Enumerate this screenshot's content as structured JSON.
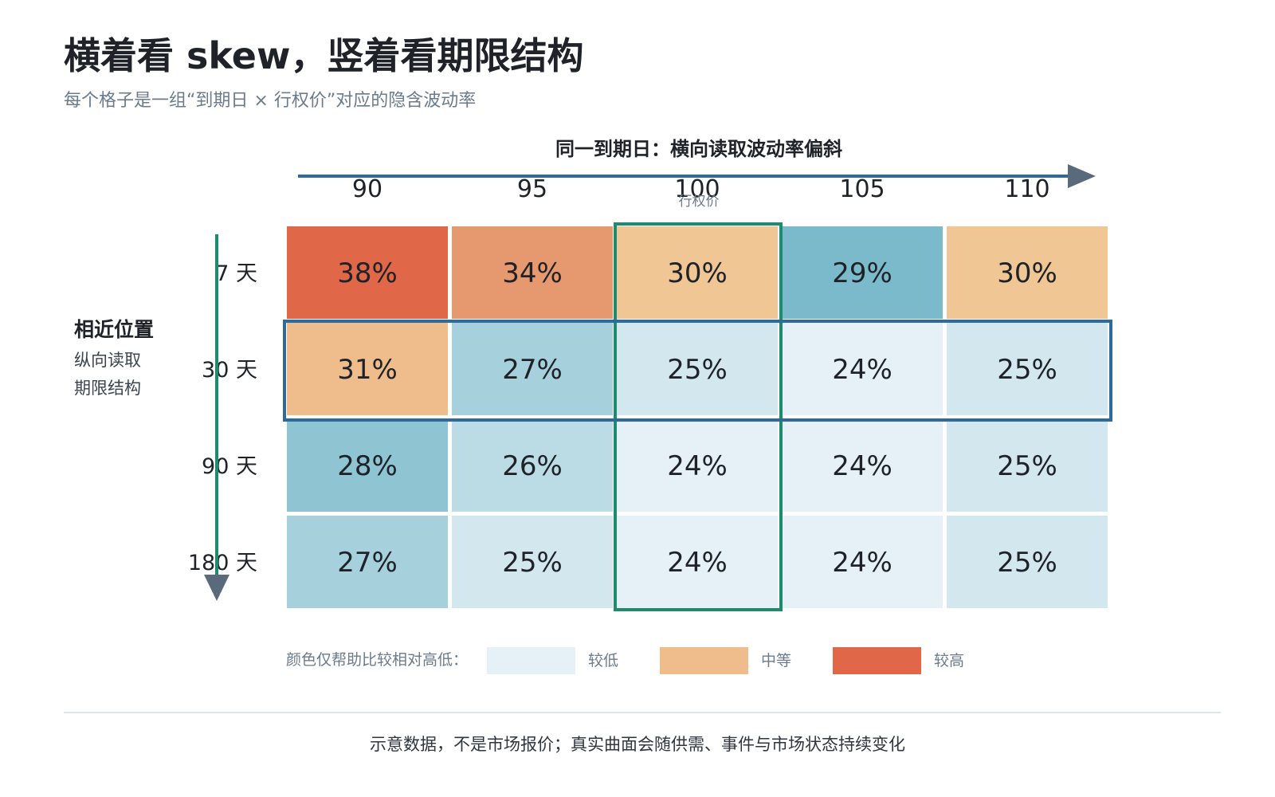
{
  "header": {
    "title": "横着看 skew，竖着看期限结构",
    "subtitle": "每个格子是一组“到期日 × 行权价”对应的隐含波动率"
  },
  "annotations": {
    "top_arrow_label": "同一到期日：横向读取波动率偏斜",
    "left_label_title": "相近位置",
    "left_label_line1": "纵向读取",
    "left_label_line2": "期限结构"
  },
  "legend": {
    "intro": "颜色仅帮助比较相对高低：",
    "items": [
      {
        "label": "较低",
        "color": "#e6f1f7"
      },
      {
        "label": "中等",
        "color": "#efbd8c"
      },
      {
        "label": "较高",
        "color": "#e06748"
      }
    ]
  },
  "footnote": "示意数据，不是市场报价；真实曲面会随供需、事件与市场状态持续变化",
  "colors": {
    "low": "#e6f1f7",
    "mid_teal": "#8fc5d3",
    "mid_orange": "#efbd8c",
    "high": "#e06748",
    "row_highlight": "#2e6a9e",
    "col_highlight": "#1e8a6e",
    "arrow": "#5a6a7d",
    "top_arrow_line": "#2e6a9e"
  },
  "chart_data": {
    "type": "heatmap",
    "xlabel": "行权价",
    "ylabel": "",
    "x": [
      "90",
      "95",
      "100",
      "105",
      "110"
    ],
    "y": [
      "7 天",
      "30 天",
      "90 天",
      "180 天"
    ],
    "values": [
      [
        38,
        34,
        30,
        29,
        30
      ],
      [
        31,
        27,
        25,
        24,
        25
      ],
      [
        28,
        26,
        24,
        24,
        25
      ],
      [
        27,
        25,
        24,
        24,
        25
      ]
    ],
    "cell_colors": [
      [
        "#e06748",
        "#e6986e",
        "#efc694",
        "#7bbaca",
        "#efc694"
      ],
      [
        "#efbd8c",
        "#a6d0dc",
        "#d3e7ee",
        "#e6f1f7",
        "#d3e7ee"
      ],
      [
        "#8fc5d3",
        "#bcdce5",
        "#e6f1f7",
        "#e6f1f7",
        "#d3e7ee"
      ],
      [
        "#a6d0dc",
        "#d3e7ee",
        "#e6f1f7",
        "#e6f1f7",
        "#d3e7ee"
      ]
    ],
    "value_suffix": "%",
    "highlight_row": "30 天",
    "highlight_column": "100"
  }
}
